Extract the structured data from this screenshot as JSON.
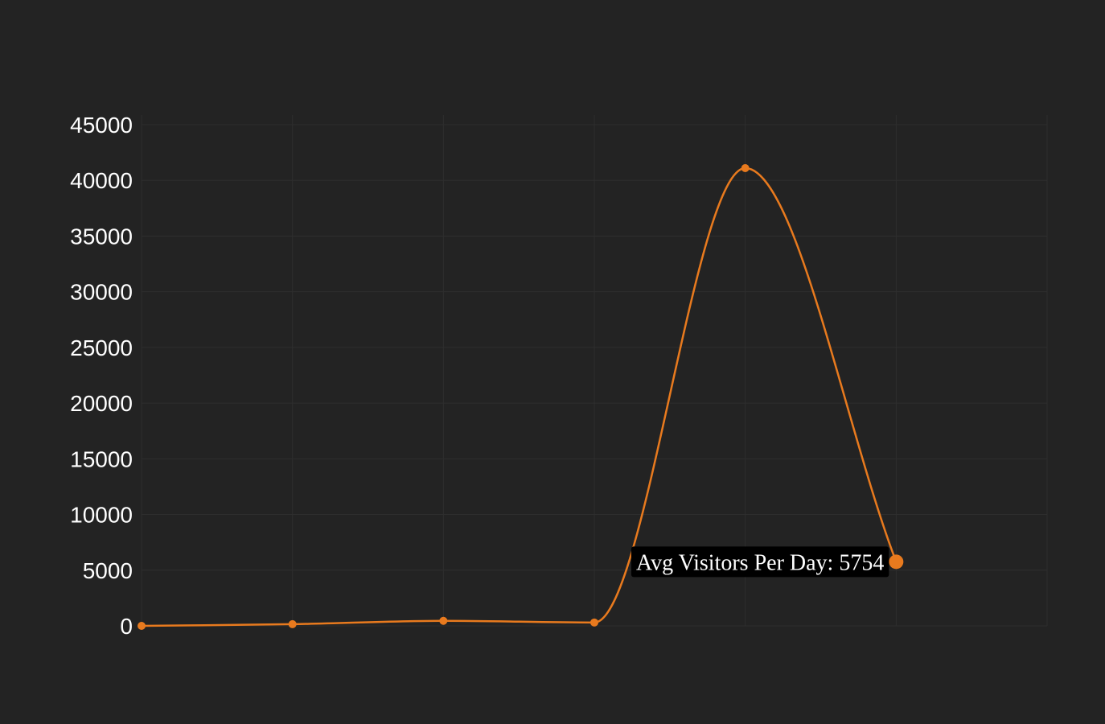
{
  "chart_data": {
    "type": "line",
    "x": [
      0,
      1,
      2,
      3,
      4,
      5
    ],
    "series": [
      {
        "name": "Avg Visitors Per Day",
        "values": [
          0,
          150,
          450,
          300,
          41100,
          5754
        ]
      }
    ],
    "yticks": [
      "0",
      "5000",
      "10000",
      "15000",
      "20000",
      "25000",
      "30000",
      "35000",
      "40000",
      "45000"
    ],
    "ylim": [
      0,
      45000
    ],
    "xlim": [
      0,
      6
    ],
    "grid": true,
    "line_color": "#e87a1e",
    "tooltip": {
      "label": "Avg Visitors Per Day: 5754",
      "point_index": 5
    }
  }
}
